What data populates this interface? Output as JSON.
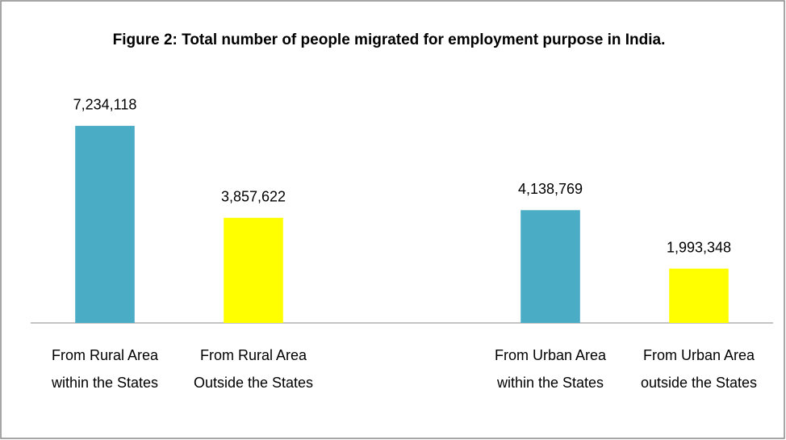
{
  "chart_data": {
    "type": "bar",
    "title": "Figure 2: Total number of people migrated for employment purpose in India.",
    "categories": [
      "From Rural Area within the States",
      "From Rural Area Outside the States",
      null,
      "From Urban Area within the States",
      "From Urban Area outside the States"
    ],
    "values": [
      7234118,
      3857622,
      null,
      4138769,
      1993348
    ],
    "value_labels": [
      "7,234,118",
      "3,857,622",
      null,
      "4,138,769",
      "1,993,348"
    ],
    "colors": [
      "#4bacc6",
      "#ffff00",
      null,
      "#4bacc6",
      "#ffff00"
    ],
    "ylim": [
      0,
      8000000
    ]
  }
}
